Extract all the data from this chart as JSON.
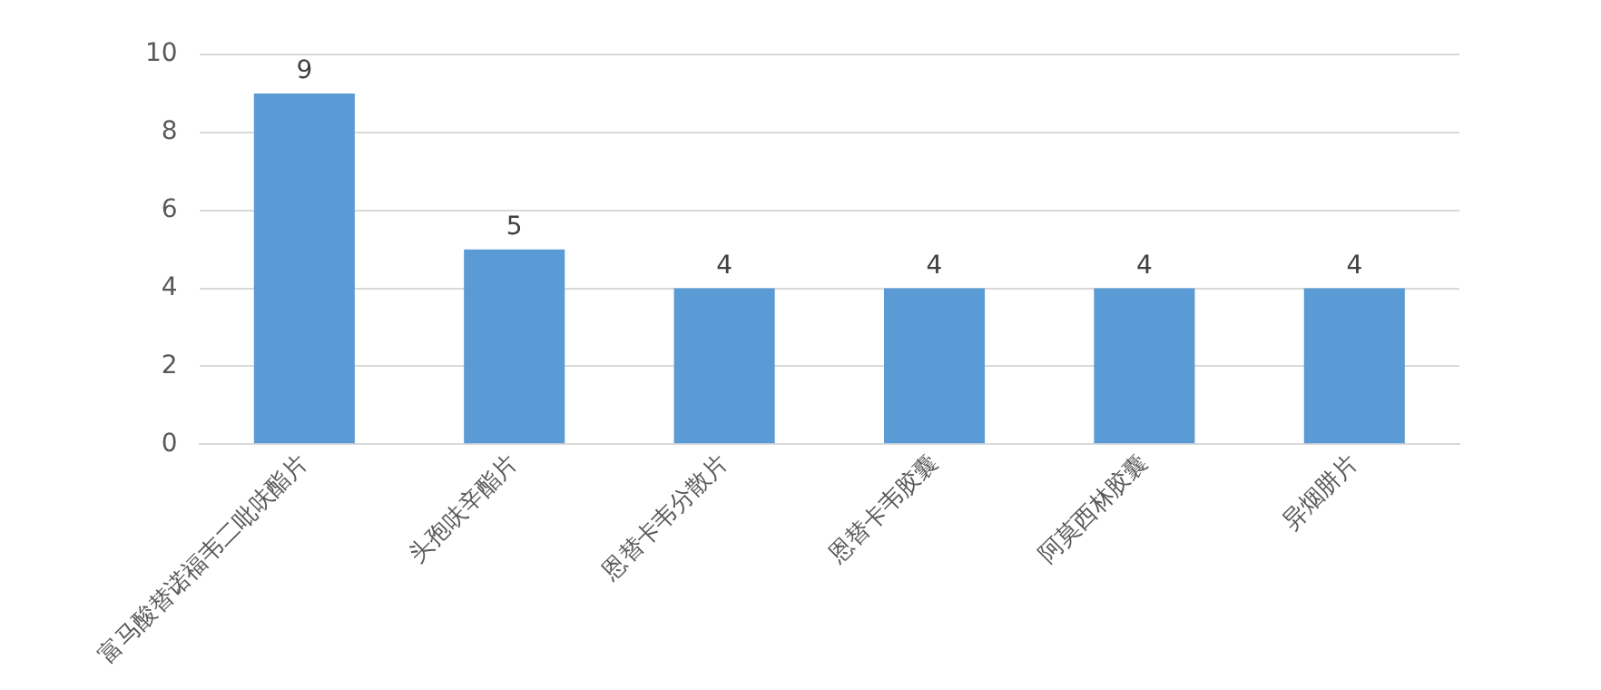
{
  "chart_data": {
    "type": "bar",
    "categories": [
      "富马酸替诺福韦二吡呋酯片",
      "头孢呋辛酯片",
      "恩替卡韦分散片",
      "恩替卡韦胶囊",
      "阿莫西林胶囊",
      "异烟肼片"
    ],
    "values": [
      9,
      5,
      4,
      4,
      4,
      4
    ],
    "color": "#5b9bd5",
    "ylim": [
      0,
      10
    ],
    "yticks": [
      0,
      2,
      4,
      6,
      8,
      10
    ],
    "grid": "y",
    "data_labels": true
  }
}
